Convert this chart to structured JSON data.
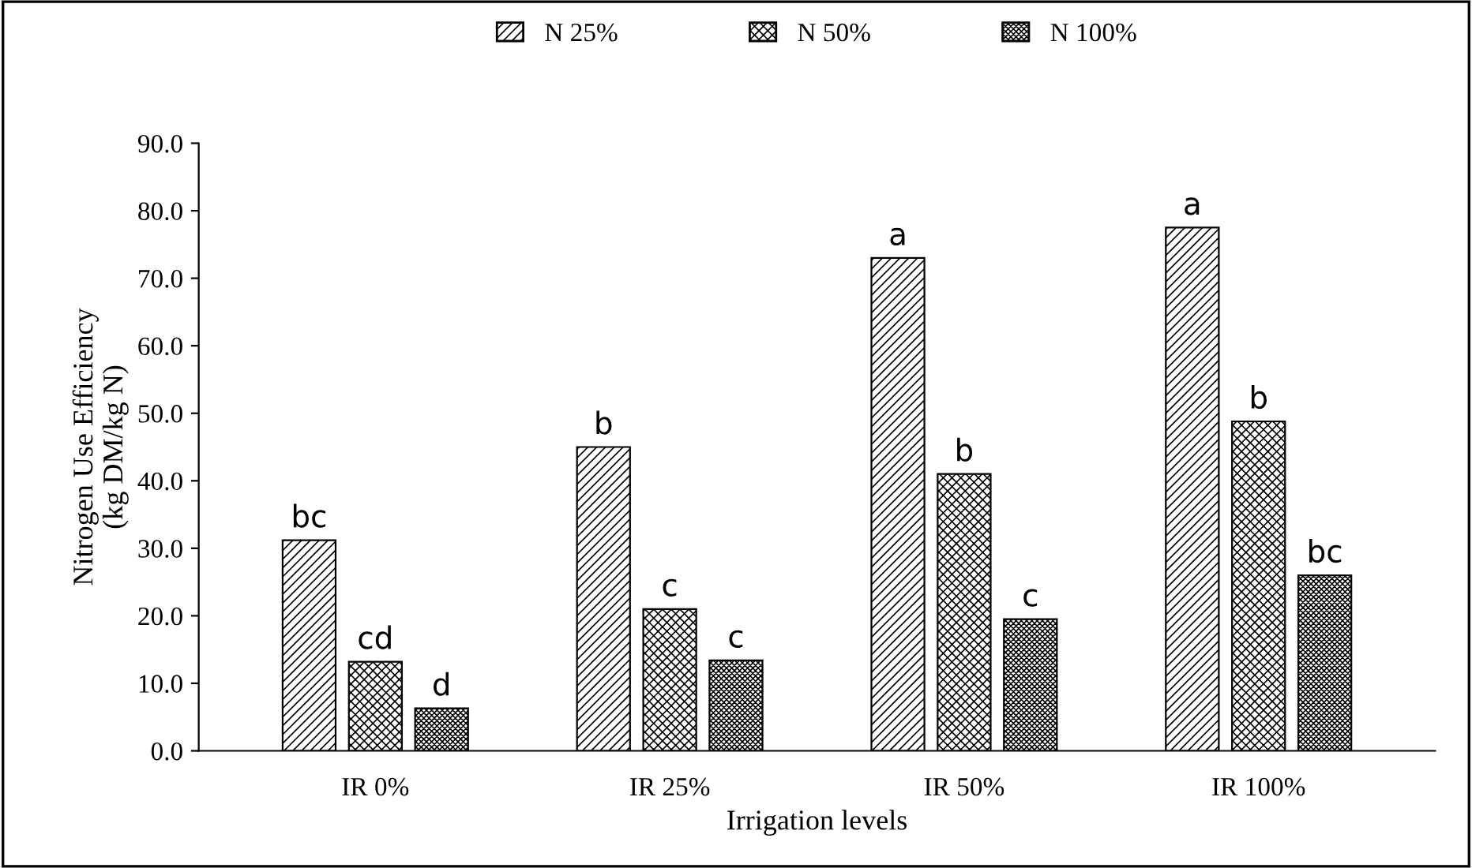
{
  "chart_data": {
    "type": "bar",
    "xlabel": "Irrigation levels",
    "ylabel": "Nitrogen Use Efficiency\n(kg DM/kg N)",
    "categories": [
      "IR 0%",
      "IR 25%",
      "IR 50%",
      "IR 100%"
    ],
    "series": [
      {
        "name": "N 25%",
        "color": "#000000",
        "values": [
          31.2,
          45.0,
          73.0,
          77.5
        ]
      },
      {
        "name": "N 50%",
        "color": "#000000",
        "values": [
          13.2,
          21.0,
          41.0,
          48.8
        ]
      },
      {
        "name": "N 100%",
        "color": "#000000",
        "values": [
          6.3,
          13.4,
          19.5,
          26.0
        ]
      }
    ],
    "ylim": [
      0,
      90
    ],
    "yticks": [
      {
        "value": 0,
        "label": "0.0"
      },
      {
        "value": 10,
        "label": "10.0"
      },
      {
        "value": 20,
        "label": "20.0"
      },
      {
        "value": 30,
        "label": "30.0"
      },
      {
        "value": 40,
        "label": "40.0"
      },
      {
        "value": 50,
        "label": "50.0"
      },
      {
        "value": 60,
        "label": "60.0"
      },
      {
        "value": 70,
        "label": "70.0"
      },
      {
        "value": 80,
        "label": "80.0"
      },
      {
        "value": 90,
        "label": "90.0"
      }
    ],
    "grid": false,
    "legend": "top",
    "annotations": [
      "bc",
      "cd",
      "d",
      "b",
      "c",
      "c",
      "a",
      "b",
      "c",
      "a",
      "b",
      "bc"
    ]
  }
}
